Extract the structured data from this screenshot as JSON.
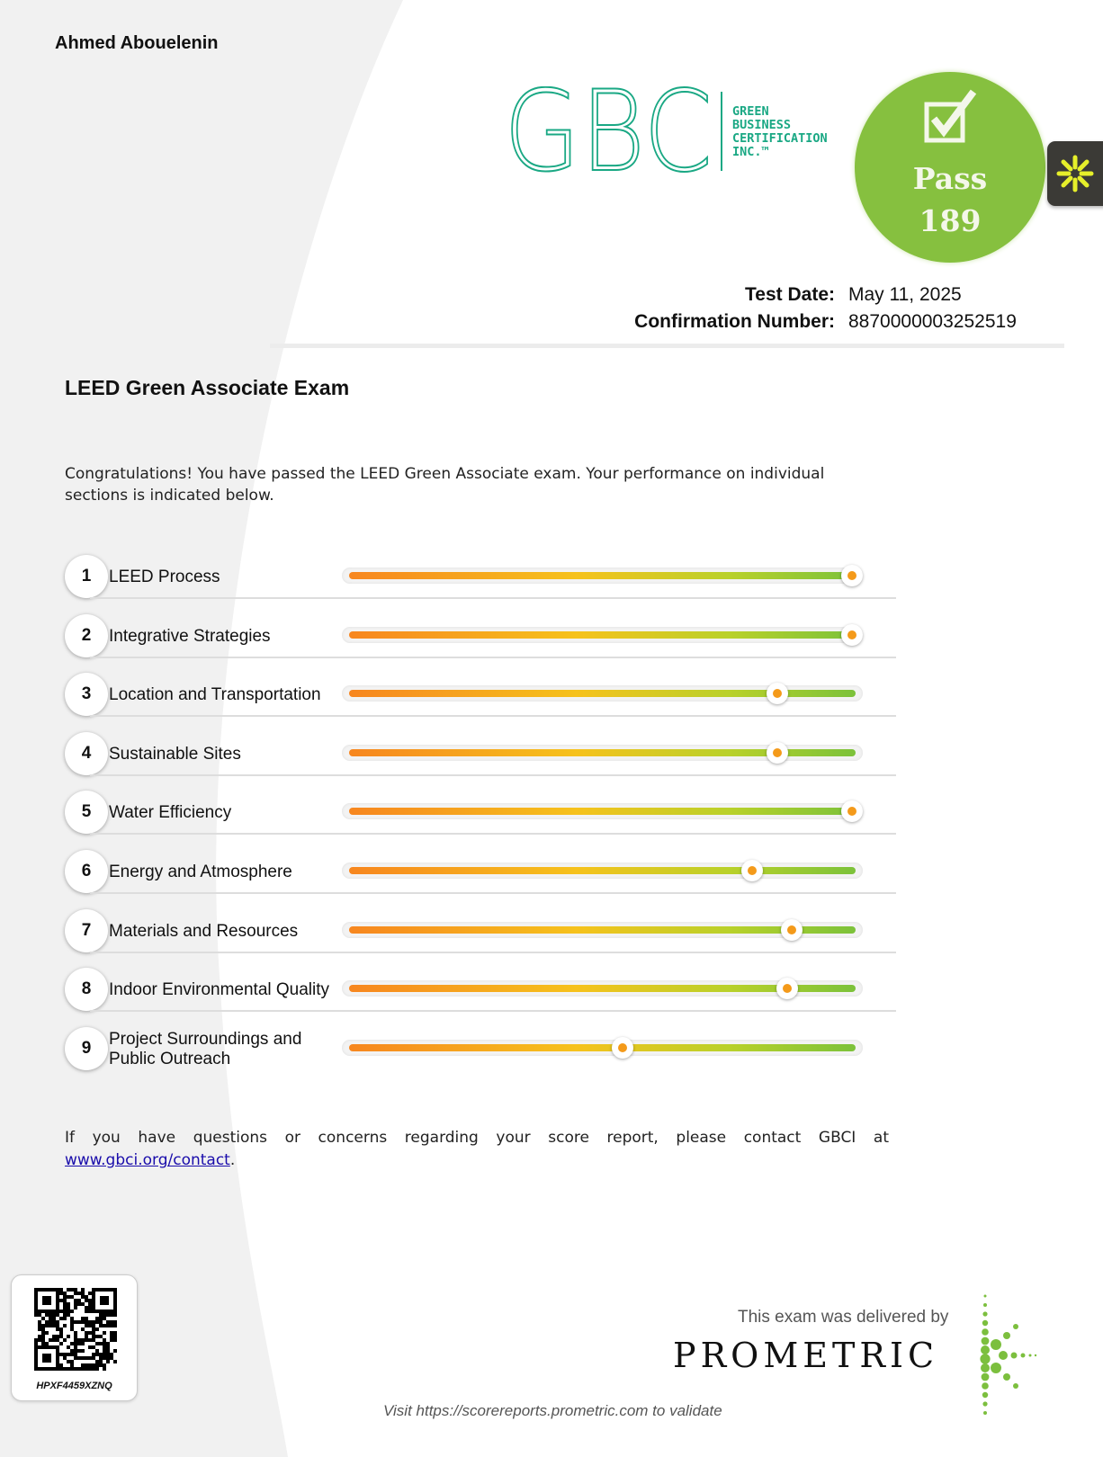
{
  "candidate_name": "Ahmed Abouelenin",
  "logo": {
    "letters": "GBC",
    "lines": [
      "GREEN",
      "BUSINESS",
      "CERTIFICATION",
      "INC.™"
    ],
    "color": "#1aa884"
  },
  "result": {
    "status": "Pass",
    "score": "189",
    "color": "#86c03f"
  },
  "meta": {
    "test_date_label": "Test Date:",
    "test_date": "May 11, 2025",
    "confirmation_label": "Confirmation Number:",
    "confirmation_number": "8870000003252519"
  },
  "exam_title": "LEED Green Associate Exam",
  "intro": "Congratulations! You have passed the LEED Green Associate exam. Your performance on individual sections is indicated below.",
  "sections": [
    {
      "num": "1",
      "label": "LEED Process",
      "performance": 1.0
    },
    {
      "num": "2",
      "label": "Integrative Strategies",
      "performance": 1.0
    },
    {
      "num": "3",
      "label": "Location and Transportation",
      "performance": 0.85
    },
    {
      "num": "4",
      "label": "Sustainable Sites",
      "performance": 0.85
    },
    {
      "num": "5",
      "label": "Water Efficiency",
      "performance": 1.0
    },
    {
      "num": "6",
      "label": "Energy and Atmosphere",
      "performance": 0.8
    },
    {
      "num": "7",
      "label": "Materials and Resources",
      "performance": 0.88
    },
    {
      "num": "8",
      "label": "Indoor Environmental Quality",
      "performance": 0.87
    },
    {
      "num": "9",
      "label": "Project Surroundings and Public Outreach",
      "performance": 0.54
    }
  ],
  "contact": {
    "text": "If you have questions or concerns regarding your score report, please contact GBCI at ",
    "link": "www.gbci.org/contact",
    "end": "."
  },
  "qr_code_id": "HPXF4459XZNQ",
  "delivered_by": "This exam was delivered by",
  "prometric": "PROMETRIC",
  "validate": "Visit https://scorereports.prometric.com to validate"
}
